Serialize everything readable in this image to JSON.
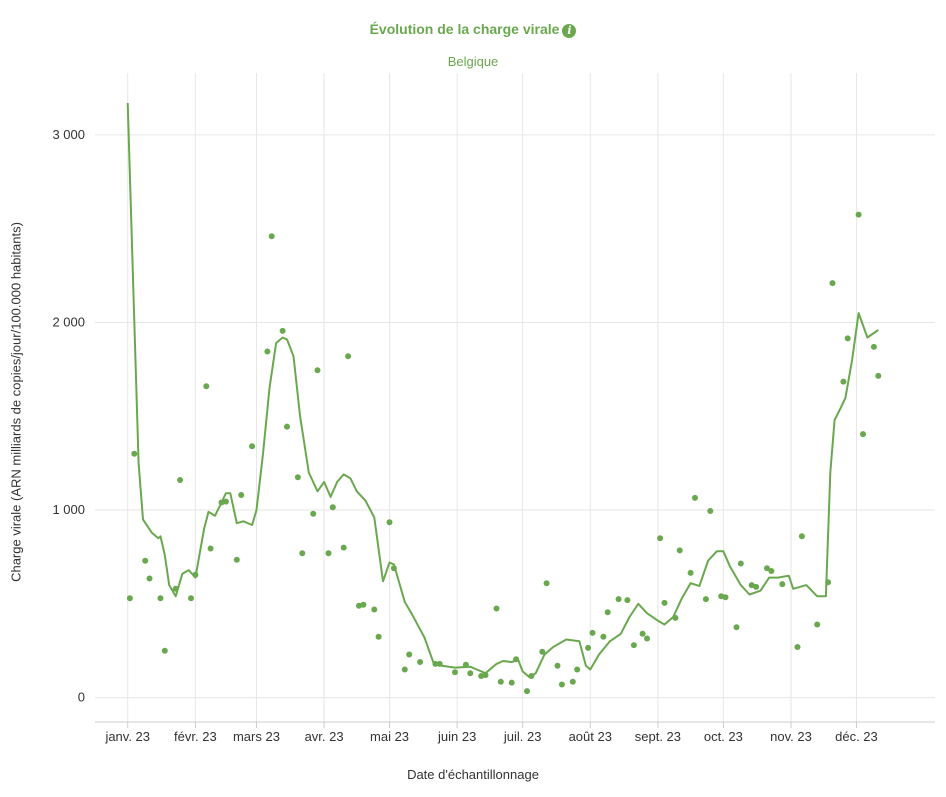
{
  "chart": {
    "title": "Évolution de la charge virale",
    "subtitle": "Belgique",
    "info_icon": "info-icon",
    "xlabel": "Date d'échantillonnage",
    "ylabel": "Charge virale (ARN milliards de copies/jour/100.000 habitants)"
  },
  "colors": {
    "accent": "#6aa84f",
    "grid": "#e6e6e6",
    "text": "#333333"
  },
  "chart_data": {
    "type": "scatter",
    "title": "Évolution de la charge virale",
    "subtitle": "Belgique",
    "xlabel": "Date d'échantillonnage",
    "ylabel": "Charge virale (ARN milliards de copies/jour/100.000 habitants)",
    "xlim": [
      "2022-12-17",
      "2024-01-06"
    ],
    "ylim": [
      -130,
      3330
    ],
    "y_ticks": [
      0,
      1000,
      2000,
      3000
    ],
    "y_tick_labels": [
      "0",
      "1 000",
      "2 000",
      "3 000"
    ],
    "x_ticks": [
      "2023-01-01",
      "2023-02-01",
      "2023-03-01",
      "2023-04-01",
      "2023-05-01",
      "2023-06-01",
      "2023-07-01",
      "2023-08-01",
      "2023-09-01",
      "2023-10-01",
      "2023-11-01",
      "2023-12-01"
    ],
    "x_tick_labels": [
      "janv. 23",
      "févr. 23",
      "mars 23",
      "avr. 23",
      "mai 23",
      "juin 23",
      "juil. 23",
      "août 23",
      "sept. 23",
      "oct. 23",
      "nov. 23",
      "déc. 23"
    ],
    "grid": true,
    "series": [
      {
        "type": "scatter",
        "points": [
          [
            "2023-01-02",
            530
          ],
          [
            "2023-01-04",
            1300
          ],
          [
            "2023-01-09",
            730
          ],
          [
            "2023-01-11",
            635
          ],
          [
            "2023-01-16",
            530
          ],
          [
            "2023-01-18",
            250
          ],
          [
            "2023-01-23",
            580
          ],
          [
            "2023-01-25",
            1160
          ],
          [
            "2023-01-30",
            530
          ],
          [
            "2023-02-01",
            655
          ],
          [
            "2023-02-06",
            1660
          ],
          [
            "2023-02-08",
            795
          ],
          [
            "2023-02-13",
            1040
          ],
          [
            "2023-02-15",
            1045
          ],
          [
            "2023-02-20",
            735
          ],
          [
            "2023-02-22",
            1080
          ],
          [
            "2023-02-27",
            1340
          ],
          [
            "2023-03-06",
            1845
          ],
          [
            "2023-03-08",
            2460
          ],
          [
            "2023-03-13",
            1955
          ],
          [
            "2023-03-15",
            1445
          ],
          [
            "2023-03-20",
            1175
          ],
          [
            "2023-03-22",
            770
          ],
          [
            "2023-03-27",
            980
          ],
          [
            "2023-03-29",
            1745
          ],
          [
            "2023-04-03",
            770
          ],
          [
            "2023-04-05",
            1015
          ],
          [
            "2023-04-10",
            800
          ],
          [
            "2023-04-12",
            1820
          ],
          [
            "2023-04-17",
            490
          ],
          [
            "2023-04-19",
            495
          ],
          [
            "2023-04-24",
            470
          ],
          [
            "2023-04-26",
            325
          ],
          [
            "2023-05-01",
            935
          ],
          [
            "2023-05-03",
            690
          ],
          [
            "2023-05-08",
            150
          ],
          [
            "2023-05-10",
            230
          ],
          [
            "2023-05-15",
            190
          ],
          [
            "2023-05-22",
            180
          ],
          [
            "2023-05-24",
            180
          ],
          [
            "2023-05-31",
            135
          ],
          [
            "2023-06-05",
            175
          ],
          [
            "2023-06-07",
            130
          ],
          [
            "2023-06-12",
            115
          ],
          [
            "2023-06-14",
            120
          ],
          [
            "2023-06-19",
            475
          ],
          [
            "2023-06-21",
            85
          ],
          [
            "2023-06-26",
            80
          ],
          [
            "2023-06-28",
            205
          ],
          [
            "2023-07-03",
            35
          ],
          [
            "2023-07-05",
            115
          ],
          [
            "2023-07-10",
            245
          ],
          [
            "2023-07-12",
            610
          ],
          [
            "2023-07-17",
            170
          ],
          [
            "2023-07-19",
            70
          ],
          [
            "2023-07-24",
            85
          ],
          [
            "2023-07-26",
            150
          ],
          [
            "2023-07-31",
            265
          ],
          [
            "2023-08-02",
            345
          ],
          [
            "2023-08-07",
            325
          ],
          [
            "2023-08-09",
            455
          ],
          [
            "2023-08-14",
            525
          ],
          [
            "2023-08-18",
            520
          ],
          [
            "2023-08-21",
            280
          ],
          [
            "2023-08-25",
            340
          ],
          [
            "2023-08-27",
            315
          ],
          [
            "2023-09-02",
            850
          ],
          [
            "2023-09-04",
            505
          ],
          [
            "2023-09-09",
            425
          ],
          [
            "2023-09-11",
            785
          ],
          [
            "2023-09-16",
            665
          ],
          [
            "2023-09-18",
            1065
          ],
          [
            "2023-09-23",
            525
          ],
          [
            "2023-09-25",
            995
          ],
          [
            "2023-09-30",
            540
          ],
          [
            "2023-10-02",
            535
          ],
          [
            "2023-10-07",
            375
          ],
          [
            "2023-10-09",
            715
          ],
          [
            "2023-10-14",
            600
          ],
          [
            "2023-10-16",
            590
          ],
          [
            "2023-10-21",
            690
          ],
          [
            "2023-10-23",
            675
          ],
          [
            "2023-10-28",
            605
          ],
          [
            "2023-11-04",
            270
          ],
          [
            "2023-11-06",
            860
          ],
          [
            "2023-11-13",
            390
          ],
          [
            "2023-11-18",
            615
          ],
          [
            "2023-11-20",
            2210
          ],
          [
            "2023-11-25",
            1685
          ],
          [
            "2023-11-27",
            1915
          ],
          [
            "2023-12-02",
            2575
          ],
          [
            "2023-12-04",
            1405
          ],
          [
            "2023-12-09",
            1870
          ],
          [
            "2023-12-11",
            1715
          ]
        ]
      },
      {
        "type": "line",
        "points": [
          [
            "2023-01-01",
            3170
          ],
          [
            "2023-01-06",
            1250
          ],
          [
            "2023-01-08",
            950
          ],
          [
            "2023-01-12",
            880
          ],
          [
            "2023-01-15",
            850
          ],
          [
            "2023-01-16",
            860
          ],
          [
            "2023-01-18",
            760
          ],
          [
            "2023-01-20",
            600
          ],
          [
            "2023-01-23",
            540
          ],
          [
            "2023-01-26",
            660
          ],
          [
            "2023-01-29",
            680
          ],
          [
            "2023-02-01",
            640
          ],
          [
            "2023-02-05",
            900
          ],
          [
            "2023-02-07",
            990
          ],
          [
            "2023-02-10",
            970
          ],
          [
            "2023-02-13",
            1040
          ],
          [
            "2023-02-15",
            1090
          ],
          [
            "2023-02-17",
            1090
          ],
          [
            "2023-02-20",
            930
          ],
          [
            "2023-02-23",
            940
          ],
          [
            "2023-02-27",
            920
          ],
          [
            "2023-03-01",
            1000
          ],
          [
            "2023-03-04",
            1300
          ],
          [
            "2023-03-07",
            1650
          ],
          [
            "2023-03-10",
            1890
          ],
          [
            "2023-03-13",
            1920
          ],
          [
            "2023-03-15",
            1910
          ],
          [
            "2023-03-18",
            1820
          ],
          [
            "2023-03-21",
            1500
          ],
          [
            "2023-03-25",
            1200
          ],
          [
            "2023-03-29",
            1100
          ],
          [
            "2023-04-01",
            1150
          ],
          [
            "2023-04-04",
            1070
          ],
          [
            "2023-04-07",
            1150
          ],
          [
            "2023-04-10",
            1190
          ],
          [
            "2023-04-13",
            1170
          ],
          [
            "2023-04-16",
            1100
          ],
          [
            "2023-04-20",
            1050
          ],
          [
            "2023-04-24",
            960
          ],
          [
            "2023-04-28",
            620
          ],
          [
            "2023-05-01",
            720
          ],
          [
            "2023-05-03",
            710
          ],
          [
            "2023-05-08",
            510
          ],
          [
            "2023-05-11",
            450
          ],
          [
            "2023-05-17",
            320
          ],
          [
            "2023-05-21",
            190
          ],
          [
            "2023-05-25",
            170
          ],
          [
            "2023-05-31",
            160
          ],
          [
            "2023-06-07",
            165
          ],
          [
            "2023-06-10",
            150
          ],
          [
            "2023-06-14",
            130
          ],
          [
            "2023-06-19",
            180
          ],
          [
            "2023-06-22",
            195
          ],
          [
            "2023-06-26",
            190
          ],
          [
            "2023-06-29",
            200
          ],
          [
            "2023-07-01",
            140
          ],
          [
            "2023-07-04",
            110
          ],
          [
            "2023-07-07",
            130
          ],
          [
            "2023-07-11",
            230
          ],
          [
            "2023-07-15",
            270
          ],
          [
            "2023-07-21",
            310
          ],
          [
            "2023-07-27",
            300
          ],
          [
            "2023-07-30",
            170
          ],
          [
            "2023-08-01",
            150
          ],
          [
            "2023-08-05",
            230
          ],
          [
            "2023-08-10",
            300
          ],
          [
            "2023-08-15",
            340
          ],
          [
            "2023-08-19",
            430
          ],
          [
            "2023-08-23",
            500
          ],
          [
            "2023-08-27",
            450
          ],
          [
            "2023-09-01",
            410
          ],
          [
            "2023-09-04",
            390
          ],
          [
            "2023-09-08",
            430
          ],
          [
            "2023-09-12",
            530
          ],
          [
            "2023-09-16",
            610
          ],
          [
            "2023-09-20",
            595
          ],
          [
            "2023-09-24",
            730
          ],
          [
            "2023-09-28",
            780
          ],
          [
            "2023-10-01",
            780
          ],
          [
            "2023-10-04",
            700
          ],
          [
            "2023-10-09",
            600
          ],
          [
            "2023-10-13",
            550
          ],
          [
            "2023-10-18",
            570
          ],
          [
            "2023-10-22",
            640
          ],
          [
            "2023-10-26",
            640
          ],
          [
            "2023-10-31",
            650
          ],
          [
            "2023-11-02",
            580
          ],
          [
            "2023-11-08",
            600
          ],
          [
            "2023-11-13",
            540
          ],
          [
            "2023-11-17",
            540
          ],
          [
            "2023-11-19",
            1200
          ],
          [
            "2023-11-21",
            1480
          ],
          [
            "2023-11-24",
            1550
          ],
          [
            "2023-11-26",
            1600
          ],
          [
            "2023-11-29",
            1800
          ],
          [
            "2023-12-02",
            2050
          ],
          [
            "2023-12-06",
            1920
          ],
          [
            "2023-12-11",
            1960
          ]
        ]
      }
    ]
  }
}
